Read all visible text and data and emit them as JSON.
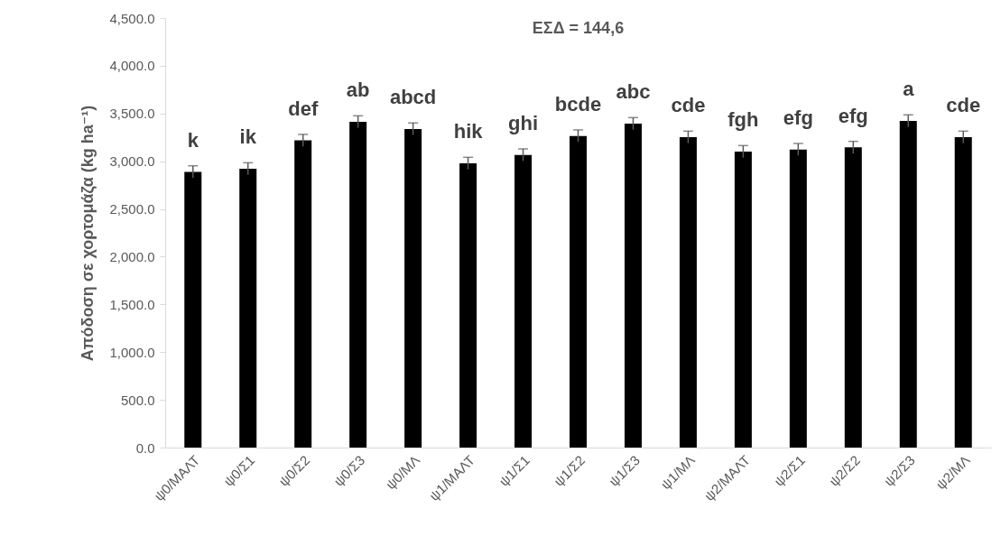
{
  "chart_data": {
    "type": "bar",
    "title": "ΕΣΔ = 144,6",
    "ylabel": "Απόδοση σε χορτομάζα (kg ha⁻¹)",
    "categories": [
      "ψ0/ΜΑΛΤ",
      "ψ0/Σ1",
      "ψ0/Σ2",
      "ψ0/Σ3",
      "ψ0/ΜΛ",
      "ψ1/ΜΑΛΤ",
      "ψ1/Σ1",
      "ψ1/Σ2",
      "ψ1/Σ3",
      "ψ1/ΜΛ",
      "ψ2/ΜΑΛΤ",
      "ψ2/Σ1",
      "ψ2/Σ2",
      "ψ2/Σ3",
      "ψ2/ΜΛ"
    ],
    "values": [
      2889,
      2921,
      3218,
      3413,
      3338,
      2978,
      3066,
      3265,
      3394,
      3252,
      3101,
      3123,
      3145,
      3423,
      3252
    ],
    "errors": [
      63,
      63,
      63,
      63,
      63,
      63,
      63,
      63,
      63,
      63,
      63,
      63,
      63,
      63,
      63
    ],
    "color": "#000000",
    "ylim": [
      0,
      4500
    ],
    "yticks": [
      {
        "value": 0,
        "label": "0.0"
      },
      {
        "value": 500,
        "label": "500.0"
      },
      {
        "value": 1000,
        "label": "1,000.0"
      },
      {
        "value": 1500,
        "label": "1,500.0"
      },
      {
        "value": 2000,
        "label": "2,000.0"
      },
      {
        "value": 2500,
        "label": "2,500.0"
      },
      {
        "value": 3000,
        "label": "3,000.0"
      },
      {
        "value": 3500,
        "label": "3,500.0"
      },
      {
        "value": 4000,
        "label": "4,000.0"
      },
      {
        "value": 4500,
        "label": "4,500.0"
      }
    ],
    "annotations": [
      {
        "text": "k",
        "x": "ψ0/ΜΑΛΤ",
        "y": 2889
      },
      {
        "text": "ik",
        "x": "ψ0/Σ1",
        "y": 2921
      },
      {
        "text": "def",
        "x": "ψ0/Σ2",
        "y": 3218
      },
      {
        "text": "ab",
        "x": "ψ0/Σ3",
        "y": 3413
      },
      {
        "text": "abcd",
        "x": "ψ0/ΜΛ",
        "y": 3338
      },
      {
        "text": "hik",
        "x": "ψ1/ΜΑΛΤ",
        "y": 2978
      },
      {
        "text": "ghi",
        "x": "ψ1/Σ1",
        "y": 3066
      },
      {
        "text": "bcde",
        "x": "ψ1/Σ2",
        "y": 3265
      },
      {
        "text": "abc",
        "x": "ψ1/Σ3",
        "y": 3394
      },
      {
        "text": "cde",
        "x": "ψ1/ΜΛ",
        "y": 3252
      },
      {
        "text": "fgh",
        "x": "ψ2/ΜΑΛΤ",
        "y": 3101
      },
      {
        "text": "efg",
        "x": "ψ2/Σ1",
        "y": 3123
      },
      {
        "text": "efg",
        "x": "ψ2/Σ2",
        "y": 3145
      },
      {
        "text": "a",
        "x": "ψ2/Σ3",
        "y": 3423
      },
      {
        "text": "cde",
        "x": "ψ2/ΜΛ",
        "y": 3252
      }
    ]
  }
}
